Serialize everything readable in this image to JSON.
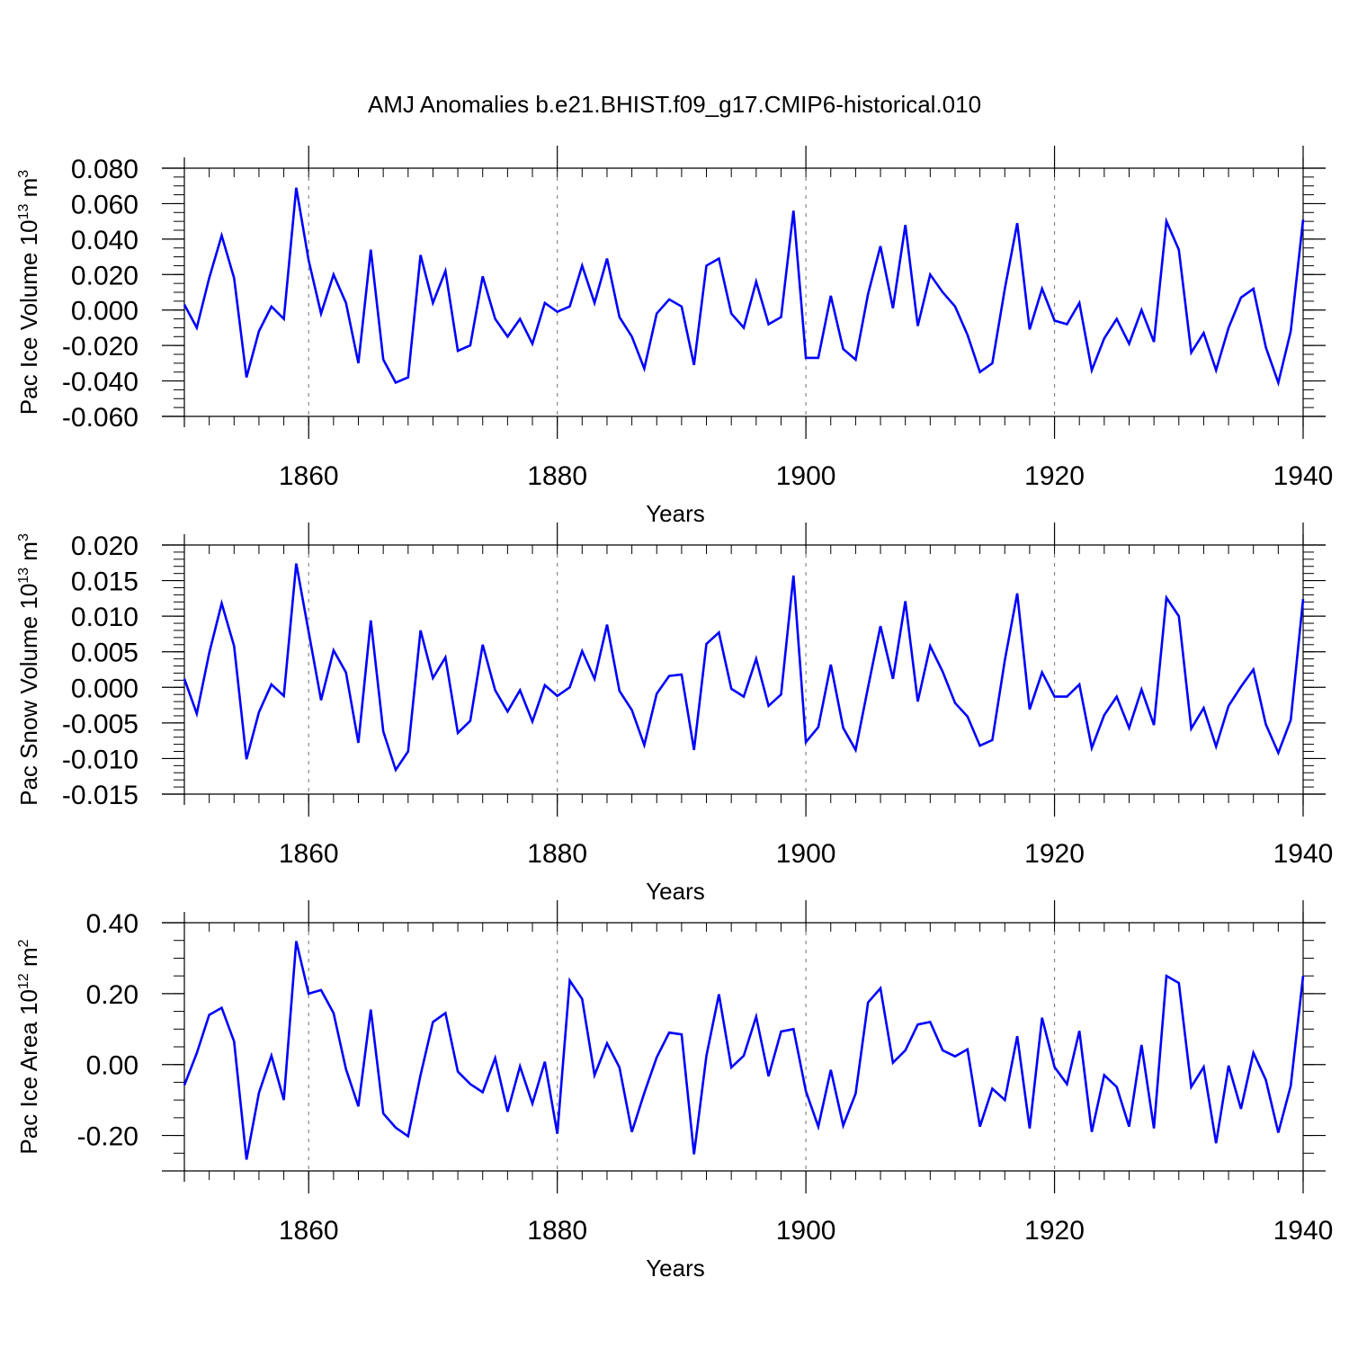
{
  "chart_data": [
    {
      "type": "line",
      "title": "AMJ Anomalies b.e21.BHIST.f09_g17.CMIP6-historical.010",
      "xlabel": "Years",
      "ylabel": "Pac Ice Volume 10",
      "ylabel_exp": "13",
      "ylabel_unit": " m",
      "ylabel_unit_exp": "3",
      "xlim": [
        1850,
        1940
      ],
      "ylim": [
        -0.06,
        0.08
      ],
      "xticks": [
        1860,
        1880,
        1900,
        1920,
        1940
      ],
      "yticks": [
        0.08,
        0.06,
        0.04,
        0.02,
        0.0,
        -0.02,
        -0.04,
        -0.06
      ],
      "ytick_labels": [
        "0.080",
        "0.060",
        "0.040",
        "0.020",
        "0.000",
        "-0.020",
        "-0.040",
        "-0.060"
      ],
      "yminor_step": 0.005,
      "line_color": "#0000ff",
      "x": [
        1850,
        1851,
        1852,
        1853,
        1854,
        1855,
        1856,
        1857,
        1858,
        1859,
        1860,
        1861,
        1862,
        1863,
        1864,
        1865,
        1866,
        1867,
        1868,
        1869,
        1870,
        1871,
        1872,
        1873,
        1874,
        1875,
        1876,
        1877,
        1878,
        1879,
        1880,
        1881,
        1882,
        1883,
        1884,
        1885,
        1886,
        1887,
        1888,
        1889,
        1890,
        1891,
        1892,
        1893,
        1894,
        1895,
        1896,
        1897,
        1898,
        1899,
        1900,
        1901,
        1902,
        1903,
        1904,
        1905,
        1906,
        1907,
        1908,
        1909,
        1910,
        1911,
        1912,
        1913,
        1914,
        1915,
        1916,
        1917,
        1918,
        1919,
        1920,
        1921,
        1922,
        1923,
        1924,
        1925,
        1926,
        1927,
        1928,
        1929,
        1930,
        1931,
        1932,
        1933,
        1934,
        1935,
        1936,
        1937,
        1938,
        1939,
        1940
      ],
      "values": [
        0.003,
        -0.01,
        0.018,
        0.042,
        0.018,
        -0.038,
        -0.012,
        0.002,
        -0.005,
        0.069,
        0.028,
        -0.002,
        0.02,
        0.004,
        -0.03,
        0.034,
        -0.028,
        -0.041,
        -0.038,
        0.031,
        0.004,
        0.022,
        -0.023,
        -0.02,
        0.019,
        -0.005,
        -0.015,
        -0.005,
        -0.019,
        0.004,
        -0.001,
        0.002,
        0.025,
        0.004,
        0.029,
        -0.004,
        -0.015,
        -0.033,
        -0.002,
        0.006,
        0.002,
        -0.031,
        0.025,
        0.029,
        -0.002,
        -0.01,
        0.016,
        -0.008,
        -0.004,
        0.056,
        -0.027,
        -0.027,
        0.008,
        -0.022,
        -0.028,
        0.009,
        0.036,
        0.001,
        0.048,
        -0.009,
        0.02,
        0.01,
        0.002,
        -0.014,
        -0.035,
        -0.03,
        0.012,
        0.049,
        -0.011,
        0.012,
        -0.006,
        -0.008,
        0.004,
        -0.034,
        -0.016,
        -0.005,
        -0.019,
        0.0,
        -0.018,
        0.05,
        0.034,
        -0.024,
        -0.013,
        -0.034,
        -0.01,
        0.007,
        0.012,
        -0.021,
        -0.041,
        -0.012,
        0.051
      ]
    },
    {
      "type": "line",
      "xlabel": "Years",
      "ylabel": "Pac Snow Volume 10",
      "ylabel_exp": "13",
      "ylabel_unit": " m",
      "ylabel_unit_exp": "3",
      "xlim": [
        1850,
        1940
      ],
      "ylim": [
        -0.015,
        0.02
      ],
      "xticks": [
        1860,
        1880,
        1900,
        1920,
        1940
      ],
      "yticks": [
        0.02,
        0.015,
        0.01,
        0.005,
        0.0,
        -0.005,
        -0.01,
        -0.015
      ],
      "ytick_labels": [
        "0.020",
        "0.015",
        "0.010",
        "0.005",
        "0.000",
        "-0.005",
        "-0.010",
        "-0.015"
      ],
      "yminor_step": 0.001,
      "line_color": "#0000ff",
      "x": [
        1850,
        1851,
        1852,
        1853,
        1854,
        1855,
        1856,
        1857,
        1858,
        1859,
        1860,
        1861,
        1862,
        1863,
        1864,
        1865,
        1866,
        1867,
        1868,
        1869,
        1870,
        1871,
        1872,
        1873,
        1874,
        1875,
        1876,
        1877,
        1878,
        1879,
        1880,
        1881,
        1882,
        1883,
        1884,
        1885,
        1886,
        1887,
        1888,
        1889,
        1890,
        1891,
        1892,
        1893,
        1894,
        1895,
        1896,
        1897,
        1898,
        1899,
        1900,
        1901,
        1902,
        1903,
        1904,
        1905,
        1906,
        1907,
        1908,
        1909,
        1910,
        1911,
        1912,
        1913,
        1914,
        1915,
        1916,
        1917,
        1918,
        1919,
        1920,
        1921,
        1922,
        1923,
        1924,
        1925,
        1926,
        1927,
        1928,
        1929,
        1930,
        1931,
        1932,
        1933,
        1934,
        1935,
        1936,
        1937,
        1938,
        1939,
        1940
      ],
      "values": [
        0.0012,
        -0.0037,
        0.0048,
        0.0118,
        0.0058,
        -0.0101,
        -0.0035,
        0.0004,
        -0.0012,
        0.0174,
        0.0078,
        -0.0018,
        0.0052,
        0.0021,
        -0.0078,
        0.0094,
        -0.0062,
        -0.0116,
        -0.009,
        0.008,
        0.0013,
        0.0042,
        -0.0064,
        -0.0047,
        0.006,
        -0.0004,
        -0.0034,
        -0.0004,
        -0.0048,
        0.0003,
        -0.0012,
        0.0,
        0.0051,
        0.0012,
        0.0088,
        -0.0005,
        -0.0032,
        -0.0081,
        -0.0009,
        0.0016,
        0.0018,
        -0.0088,
        0.0061,
        0.0077,
        -0.0002,
        -0.0013,
        0.004,
        -0.0026,
        -0.001,
        0.0157,
        -0.0077,
        -0.0056,
        0.0032,
        -0.0057,
        -0.0088,
        0.0,
        0.0086,
        0.0012,
        0.0121,
        -0.002,
        0.0058,
        0.0022,
        -0.0022,
        -0.0041,
        -0.0082,
        -0.0074,
        0.0038,
        0.0132,
        -0.0031,
        0.0021,
        -0.0013,
        -0.0013,
        0.0004,
        -0.0085,
        -0.0039,
        -0.0013,
        -0.0057,
        -0.0003,
        -0.0053,
        0.0126,
        0.01,
        -0.0058,
        -0.0029,
        -0.0083,
        -0.0026,
        0.0001,
        0.0025,
        -0.0052,
        -0.0092,
        -0.0046,
        0.0124
      ]
    },
    {
      "type": "line",
      "xlabel": "Years",
      "ylabel": "Pac Ice Area 10",
      "ylabel_exp": "12",
      "ylabel_unit": " m",
      "ylabel_unit_exp": "2",
      "xlim": [
        1850,
        1940
      ],
      "ylim": [
        -0.3,
        0.4
      ],
      "xticks": [
        1860,
        1880,
        1900,
        1920,
        1940
      ],
      "yticks": [
        0.4,
        0.2,
        0.0,
        -0.2
      ],
      "ytick_labels": [
        "0.40",
        "0.20",
        "0.00",
        "-0.20"
      ],
      "yminor_step": 0.05,
      "line_color": "#0000ff",
      "x": [
        1850,
        1851,
        1852,
        1853,
        1854,
        1855,
        1856,
        1857,
        1858,
        1859,
        1860,
        1861,
        1862,
        1863,
        1864,
        1865,
        1866,
        1867,
        1868,
        1869,
        1870,
        1871,
        1872,
        1873,
        1874,
        1875,
        1876,
        1877,
        1878,
        1879,
        1880,
        1881,
        1882,
        1883,
        1884,
        1885,
        1886,
        1887,
        1888,
        1889,
        1890,
        1891,
        1892,
        1893,
        1894,
        1895,
        1896,
        1897,
        1898,
        1899,
        1900,
        1901,
        1902,
        1903,
        1904,
        1905,
        1906,
        1907,
        1908,
        1909,
        1910,
        1911,
        1912,
        1913,
        1914,
        1915,
        1916,
        1917,
        1918,
        1919,
        1920,
        1921,
        1922,
        1923,
        1924,
        1925,
        1926,
        1927,
        1928,
        1929,
        1930,
        1931,
        1932,
        1933,
        1934,
        1935,
        1936,
        1937,
        1938,
        1939,
        1940
      ],
      "values": [
        -0.058,
        0.032,
        0.14,
        0.16,
        0.065,
        -0.268,
        -0.08,
        0.025,
        -0.1,
        0.348,
        0.2,
        0.21,
        0.145,
        -0.013,
        -0.118,
        0.155,
        -0.138,
        -0.178,
        -0.202,
        -0.03,
        0.12,
        0.145,
        -0.02,
        -0.055,
        -0.078,
        0.018,
        -0.133,
        -0.005,
        -0.11,
        0.008,
        -0.195,
        0.237,
        0.185,
        -0.03,
        0.06,
        -0.008,
        -0.19,
        -0.08,
        0.02,
        0.09,
        0.085,
        -0.253,
        0.025,
        0.198,
        -0.008,
        0.025,
        0.135,
        -0.033,
        0.093,
        0.1,
        -0.075,
        -0.175,
        -0.015,
        -0.172,
        -0.082,
        0.175,
        0.215,
        0.005,
        0.04,
        0.113,
        0.12,
        0.04,
        0.023,
        0.043,
        -0.175,
        -0.068,
        -0.1,
        0.08,
        -0.18,
        0.132,
        -0.007,
        -0.055,
        0.095,
        -0.19,
        -0.03,
        -0.063,
        -0.175,
        0.055,
        -0.18,
        0.25,
        0.23,
        -0.063,
        -0.007,
        -0.222,
        -0.003,
        -0.125,
        0.033,
        -0.043,
        -0.192,
        -0.06,
        0.25
      ]
    }
  ]
}
